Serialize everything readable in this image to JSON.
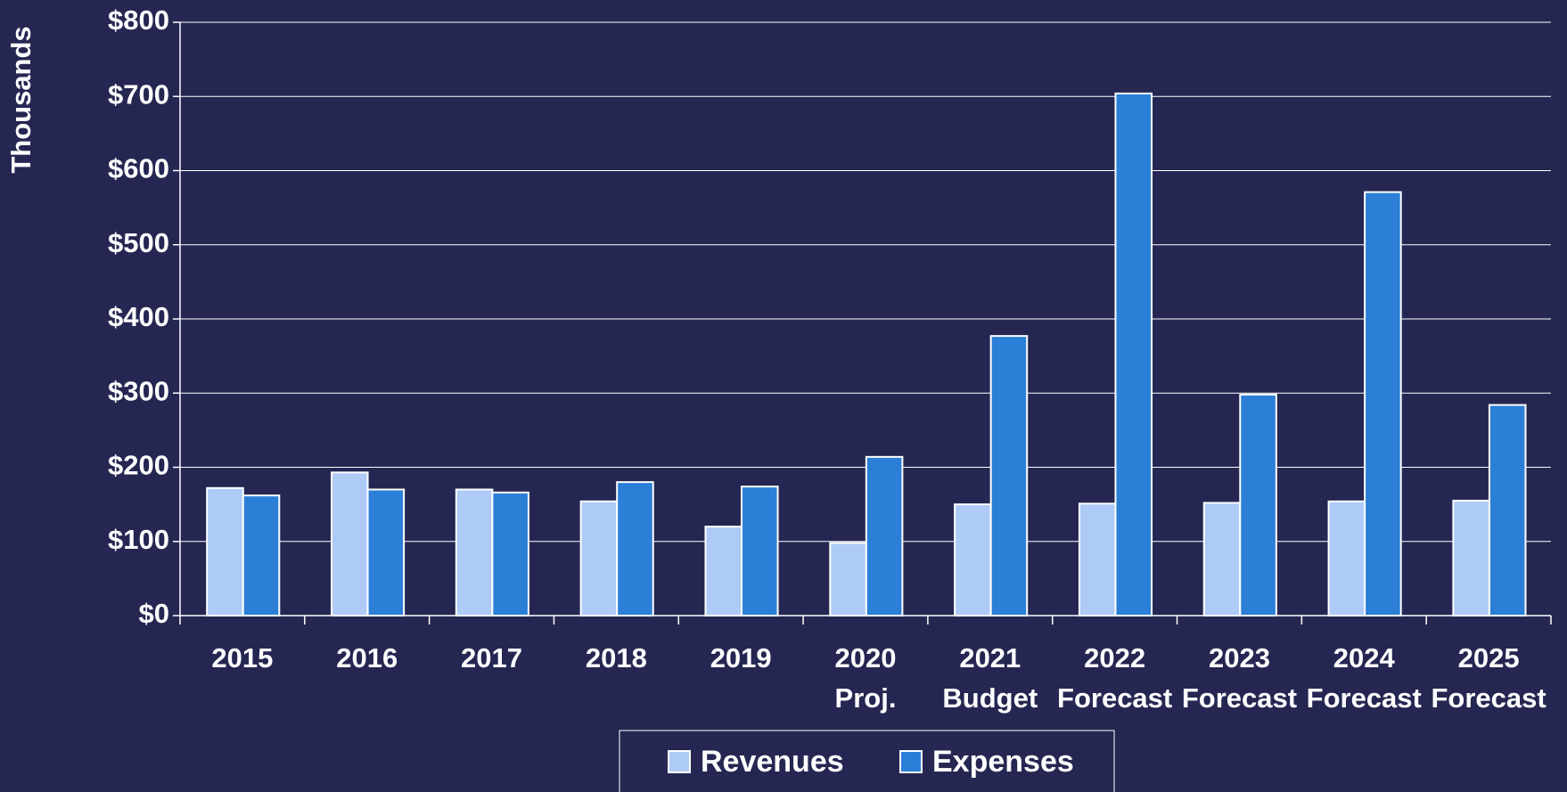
{
  "chart_data": {
    "type": "bar",
    "y_label": "Thousands",
    "categories": [
      "2015",
      "2016",
      "2017",
      "2018",
      "2019",
      "2020 Proj.",
      "2021 Budget",
      "2022 Forecast",
      "2023 Forecast",
      "2024 Forecast",
      "2025 Forecast"
    ],
    "series": [
      {
        "name": "Revenues",
        "color": "#aecbf7",
        "values": [
          172,
          193,
          170,
          154,
          120,
          98,
          150,
          151,
          152,
          154,
          155
        ]
      },
      {
        "name": "Expenses",
        "color": "#2b7fd6",
        "values": [
          162,
          170,
          166,
          180,
          174,
          214,
          377,
          704,
          298,
          571,
          284
        ]
      }
    ],
    "ylim": [
      0,
      800
    ],
    "yticks": [
      {
        "value": 0,
        "label": "$0"
      },
      {
        "value": 100,
        "label": "$100"
      },
      {
        "value": 200,
        "label": "$200"
      },
      {
        "value": 300,
        "label": "$300"
      },
      {
        "value": 400,
        "label": "$400"
      },
      {
        "value": 500,
        "label": "$500"
      },
      {
        "value": 600,
        "label": "$600"
      },
      {
        "value": 700,
        "label": "$700"
      },
      {
        "value": 800,
        "label": "$800"
      }
    ],
    "grid": true,
    "legend": "bottom"
  }
}
